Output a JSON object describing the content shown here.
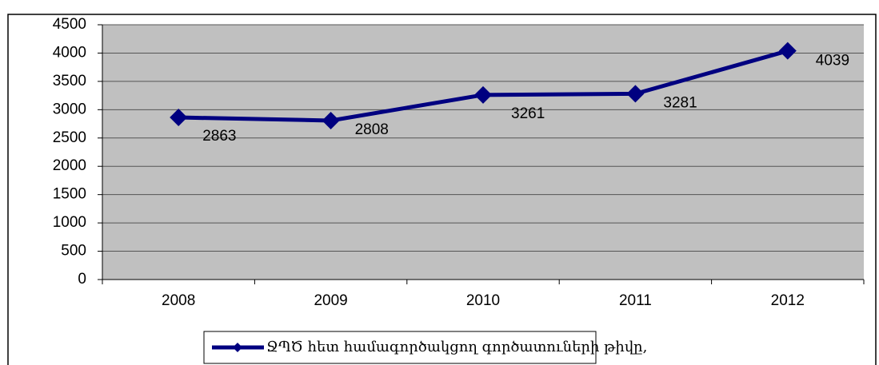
{
  "chart_data": {
    "type": "line",
    "categories": [
      "2008",
      "2009",
      "2010",
      "2011",
      "2012"
    ],
    "series": [
      {
        "name": "ՋՊԾ հետ համագործակցող գործատուների թիվը,",
        "color": "#000080",
        "values": [
          2863,
          2808,
          3261,
          3281,
          4039
        ]
      }
    ],
    "ylim": [
      0,
      4500
    ],
    "yticks": [
      0,
      500,
      1000,
      1500,
      2000,
      2500,
      3000,
      3500,
      4000,
      4500
    ],
    "grid": true,
    "legend": "bottom",
    "data_labels": true,
    "plot_background": "#c0c0c0"
  }
}
